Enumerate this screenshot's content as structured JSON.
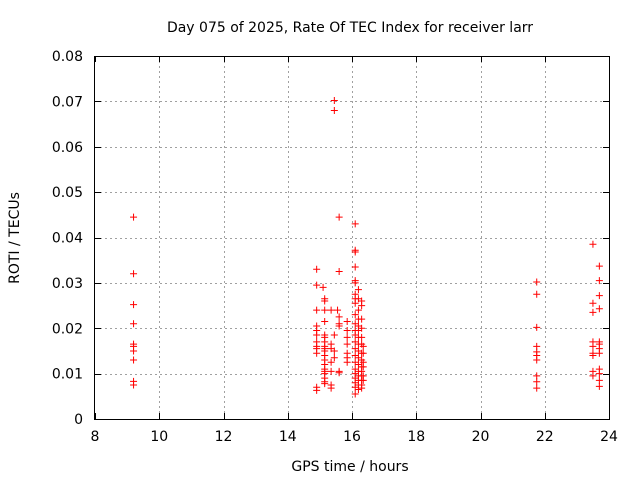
{
  "chart_data": {
    "type": "scatter",
    "title": "Day 075 of 2025, Rate Of TEC Index for receiver larr",
    "xlabel": "GPS time / hours",
    "ylabel": "ROTI / TECUs",
    "xlim": [
      8,
      24
    ],
    "ylim": [
      0,
      0.08
    ],
    "xticks": [
      8,
      10,
      12,
      14,
      16,
      18,
      20,
      22,
      24
    ],
    "yticks": [
      0,
      0.01,
      0.02,
      0.03,
      0.04,
      0.05,
      0.06,
      0.07,
      0.08
    ],
    "xtick_labels": [
      "8",
      "10",
      "12",
      "14",
      "16",
      "18",
      "20",
      "22",
      "24"
    ],
    "ytick_labels": [
      "0",
      "0.01",
      "0.02",
      "0.03",
      "0.04",
      "0.05",
      "0.06",
      "0.07",
      "0.08"
    ],
    "grid": true,
    "marker": "+",
    "color": "#ff0000",
    "series": [
      {
        "name": "ROTI",
        "points": [
          [
            9.2,
            0.0445
          ],
          [
            9.2,
            0.032
          ],
          [
            9.2,
            0.0252
          ],
          [
            9.2,
            0.021
          ],
          [
            9.2,
            0.0165
          ],
          [
            9.2,
            0.016
          ],
          [
            9.2,
            0.015
          ],
          [
            9.2,
            0.013
          ],
          [
            9.2,
            0.0083
          ],
          [
            9.2,
            0.0075
          ],
          [
            14.9,
            0.033
          ],
          [
            14.9,
            0.0295
          ],
          [
            14.9,
            0.024
          ],
          [
            14.9,
            0.0205
          ],
          [
            14.9,
            0.0195
          ],
          [
            14.9,
            0.0185
          ],
          [
            14.9,
            0.017
          ],
          [
            14.9,
            0.016
          ],
          [
            14.9,
            0.0155
          ],
          [
            14.9,
            0.0145
          ],
          [
            14.9,
            0.007
          ],
          [
            14.9,
            0.0063
          ],
          [
            15.1,
            0.029
          ],
          [
            15.15,
            0.0265
          ],
          [
            15.15,
            0.026
          ],
          [
            15.15,
            0.024
          ],
          [
            15.15,
            0.0215
          ],
          [
            15.15,
            0.0185
          ],
          [
            15.15,
            0.018
          ],
          [
            15.15,
            0.017
          ],
          [
            15.15,
            0.016
          ],
          [
            15.15,
            0.0155
          ],
          [
            15.15,
            0.015
          ],
          [
            15.15,
            0.014
          ],
          [
            15.15,
            0.013
          ],
          [
            15.15,
            0.012
          ],
          [
            15.15,
            0.011
          ],
          [
            15.15,
            0.0105
          ],
          [
            15.15,
            0.01
          ],
          [
            15.15,
            0.009
          ],
          [
            15.15,
            0.0082
          ],
          [
            15.15,
            0.0078
          ],
          [
            15.35,
            0.024
          ],
          [
            15.35,
            0.0165
          ],
          [
            15.35,
            0.0155
          ],
          [
            15.35,
            0.0125
          ],
          [
            15.35,
            0.0105
          ],
          [
            15.35,
            0.0075
          ],
          [
            15.35,
            0.0068
          ],
          [
            15.45,
            0.0702
          ],
          [
            15.45,
            0.068
          ],
          [
            15.45,
            0.0185
          ],
          [
            15.45,
            0.015
          ],
          [
            15.45,
            0.0135
          ],
          [
            15.55,
            0.024
          ],
          [
            15.6,
            0.0445
          ],
          [
            15.6,
            0.0325
          ],
          [
            15.6,
            0.0225
          ],
          [
            15.6,
            0.021
          ],
          [
            15.6,
            0.0205
          ],
          [
            15.6,
            0.0105
          ],
          [
            15.6,
            0.0102
          ],
          [
            15.85,
            0.0215
          ],
          [
            15.85,
            0.0195
          ],
          [
            15.85,
            0.018
          ],
          [
            15.85,
            0.0165
          ],
          [
            15.85,
            0.0145
          ],
          [
            15.85,
            0.0135
          ],
          [
            15.85,
            0.0125
          ],
          [
            16.1,
            0.043
          ],
          [
            16.1,
            0.0372
          ],
          [
            16.1,
            0.0368
          ],
          [
            16.1,
            0.0335
          ],
          [
            16.1,
            0.0305
          ],
          [
            16.1,
            0.03
          ],
          [
            16.1,
            0.0275
          ],
          [
            16.1,
            0.0265
          ],
          [
            16.1,
            0.0255
          ],
          [
            16.1,
            0.023
          ],
          [
            16.1,
            0.021
          ],
          [
            16.1,
            0.0195
          ],
          [
            16.1,
            0.0185
          ],
          [
            16.1,
            0.017
          ],
          [
            16.1,
            0.0155
          ],
          [
            16.1,
            0.014
          ],
          [
            16.1,
            0.0125
          ],
          [
            16.1,
            0.011
          ],
          [
            16.1,
            0.01
          ],
          [
            16.1,
            0.009
          ],
          [
            16.1,
            0.008
          ],
          [
            16.1,
            0.007
          ],
          [
            16.1,
            0.0055
          ],
          [
            16.2,
            0.0285
          ],
          [
            16.2,
            0.0265
          ],
          [
            16.2,
            0.024
          ],
          [
            16.2,
            0.022
          ],
          [
            16.2,
            0.0205
          ],
          [
            16.2,
            0.0195
          ],
          [
            16.2,
            0.018
          ],
          [
            16.2,
            0.0165
          ],
          [
            16.2,
            0.015
          ],
          [
            16.2,
            0.0135
          ],
          [
            16.2,
            0.012
          ],
          [
            16.2,
            0.0105
          ],
          [
            16.2,
            0.0095
          ],
          [
            16.2,
            0.0085
          ],
          [
            16.2,
            0.0075
          ],
          [
            16.2,
            0.0065
          ],
          [
            16.3,
            0.026
          ],
          [
            16.3,
            0.025
          ],
          [
            16.3,
            0.022
          ],
          [
            16.3,
            0.02
          ],
          [
            16.3,
            0.018
          ],
          [
            16.3,
            0.0165
          ],
          [
            16.3,
            0.0145
          ],
          [
            16.3,
            0.013
          ],
          [
            16.3,
            0.0115
          ],
          [
            16.3,
            0.0105
          ],
          [
            16.3,
            0.0095
          ],
          [
            16.3,
            0.0085
          ],
          [
            16.3,
            0.0075
          ],
          [
            16.3,
            0.0068
          ],
          [
            16.35,
            0.016
          ],
          [
            16.35,
            0.0145
          ],
          [
            16.35,
            0.0125
          ],
          [
            16.35,
            0.0115
          ],
          [
            16.35,
            0.0095
          ],
          [
            16.35,
            0.0085
          ],
          [
            21.75,
            0.0302
          ],
          [
            21.75,
            0.0275
          ],
          [
            21.75,
            0.0202
          ],
          [
            21.75,
            0.016
          ],
          [
            21.75,
            0.0148
          ],
          [
            21.75,
            0.014
          ],
          [
            21.75,
            0.013
          ],
          [
            21.75,
            0.0095
          ],
          [
            21.75,
            0.0082
          ],
          [
            21.75,
            0.0068
          ],
          [
            23.5,
            0.0385
          ],
          [
            23.5,
            0.0255
          ],
          [
            23.5,
            0.0235
          ],
          [
            23.5,
            0.017
          ],
          [
            23.5,
            0.016
          ],
          [
            23.5,
            0.0145
          ],
          [
            23.5,
            0.014
          ],
          [
            23.5,
            0.0105
          ],
          [
            23.5,
            0.0095
          ],
          [
            23.7,
            0.0337
          ],
          [
            23.7,
            0.0305
          ],
          [
            23.7,
            0.0272
          ],
          [
            23.7,
            0.0243
          ],
          [
            23.7,
            0.017
          ],
          [
            23.7,
            0.0165
          ],
          [
            23.7,
            0.0155
          ],
          [
            23.7,
            0.0145
          ],
          [
            23.7,
            0.011
          ],
          [
            23.7,
            0.01
          ],
          [
            23.7,
            0.0085
          ],
          [
            23.7,
            0.0072
          ]
        ]
      }
    ]
  }
}
